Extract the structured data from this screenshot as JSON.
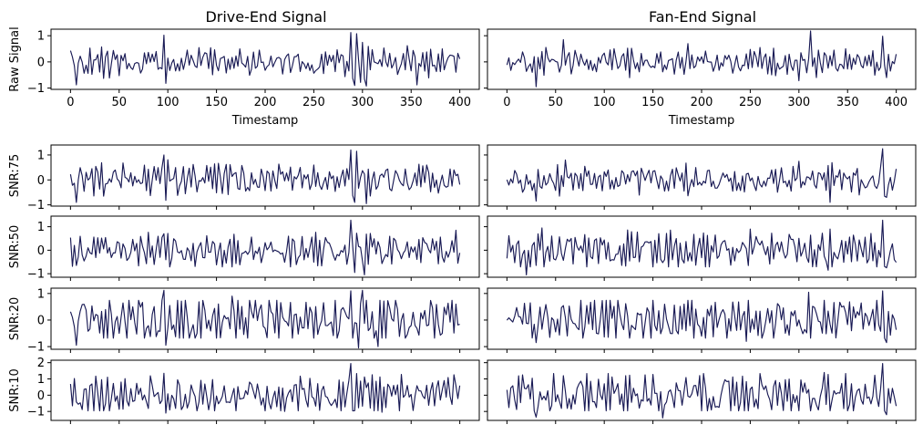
{
  "colors": {
    "line": "#191a55",
    "frame": "#000000",
    "background": "#ffffff"
  },
  "columns": [
    {
      "title": "Drive-End Signal"
    },
    {
      "title": "Fan-End Signal"
    }
  ],
  "chart_data": [
    {
      "type": "line",
      "row": 0,
      "col": 0,
      "ylabel": "Raw Signal",
      "xlabel": "Timestamp",
      "xlim": [
        0,
        400
      ],
      "ylim": [
        -1.05,
        1.25
      ],
      "yticks": [
        -1,
        0,
        1
      ],
      "xticks": [
        0,
        50,
        100,
        150,
        200,
        250,
        300,
        350,
        400
      ],
      "xticklabels": [
        "0",
        "50",
        "100",
        "150",
        "200",
        "250",
        "300",
        "350",
        "400"
      ],
      "seed": 11,
      "amp": 0.22,
      "spikes": [
        [
          95,
          1.02
        ],
        [
          97,
          -0.82
        ],
        [
          288,
          1.12
        ],
        [
          291,
          -0.9
        ],
        [
          294,
          1.08
        ],
        [
          297,
          -0.78
        ],
        [
          303,
          -0.92
        ],
        [
          345,
          0.62
        ],
        [
          356,
          -0.88
        ],
        [
          6,
          -0.88
        ]
      ]
    },
    {
      "type": "line",
      "row": 0,
      "col": 1,
      "ylabel": "",
      "xlabel": "Timestamp",
      "xlim": [
        0,
        400
      ],
      "ylim": [
        -1.05,
        1.25
      ],
      "yticks": [
        -1,
        0,
        1
      ],
      "xticks": [
        0,
        50,
        100,
        150,
        200,
        250,
        300,
        350,
        400
      ],
      "xticklabels": [
        "0",
        "50",
        "100",
        "150",
        "200",
        "250",
        "300",
        "350",
        "400"
      ],
      "seed": 23,
      "amp": 0.2,
      "spikes": [
        [
          30,
          -0.95
        ],
        [
          57,
          0.85
        ],
        [
          186,
          0.7
        ],
        [
          300,
          -0.72
        ],
        [
          311,
          1.18
        ],
        [
          318,
          -0.6
        ],
        [
          385,
          0.98
        ],
        [
          390,
          -0.6
        ],
        [
          260,
          0.55
        ]
      ]
    },
    {
      "type": "line",
      "row": 1,
      "col": 0,
      "ylabel": "SNR:75",
      "xlabel": "",
      "xlim": [
        0,
        400
      ],
      "ylim": [
        -1.05,
        1.4
      ],
      "yticks": [
        -1,
        0,
        1
      ],
      "xticks": [
        0,
        50,
        100,
        150,
        200,
        250,
        300,
        350,
        400
      ],
      "xticklabels": [],
      "seed": 37,
      "amp": 0.26,
      "spikes": [
        [
          95,
          1.0
        ],
        [
          97,
          -0.82
        ],
        [
          288,
          1.2
        ],
        [
          291,
          -0.9
        ],
        [
          294,
          1.15
        ],
        [
          303,
          -0.95
        ],
        [
          5,
          -0.9
        ],
        [
          160,
          0.62
        ]
      ]
    },
    {
      "type": "line",
      "row": 1,
      "col": 1,
      "ylabel": "",
      "xlabel": "",
      "xlim": [
        0,
        400
      ],
      "ylim": [
        -1.05,
        1.4
      ],
      "yticks": [
        -1,
        0,
        1
      ],
      "xticks": [
        0,
        50,
        100,
        150,
        200,
        250,
        300,
        350,
        400
      ],
      "xticklabels": [],
      "seed": 41,
      "amp": 0.24,
      "spikes": [
        [
          30,
          -0.85
        ],
        [
          332,
          -0.9
        ],
        [
          385,
          1.25
        ],
        [
          390,
          -0.7
        ],
        [
          300,
          0.75
        ],
        [
          60,
          0.8
        ]
      ]
    },
    {
      "type": "line",
      "row": 2,
      "col": 0,
      "ylabel": "SNR:50",
      "xlabel": "",
      "xlim": [
        0,
        400
      ],
      "ylim": [
        -1.15,
        1.45
      ],
      "yticks": [
        -1,
        0,
        1
      ],
      "xticks": [
        0,
        50,
        100,
        150,
        200,
        250,
        300,
        350,
        400
      ],
      "xticklabels": [],
      "seed": 53,
      "amp": 0.28,
      "spikes": [
        [
          288,
          1.28
        ],
        [
          291,
          -0.95
        ],
        [
          301,
          -1.05
        ],
        [
          6,
          -0.65
        ],
        [
          95,
          0.7
        ],
        [
          395,
          0.85
        ]
      ]
    },
    {
      "type": "line",
      "row": 2,
      "col": 1,
      "ylabel": "",
      "xlabel": "",
      "xlim": [
        0,
        400
      ],
      "ylim": [
        -1.15,
        1.45
      ],
      "yticks": [
        -1,
        0,
        1
      ],
      "xticks": [
        0,
        50,
        100,
        150,
        200,
        250,
        300,
        350,
        400
      ],
      "xticklabels": [],
      "seed": 67,
      "amp": 0.33,
      "spikes": [
        [
          20,
          -1.05
        ],
        [
          385,
          1.28
        ],
        [
          390,
          -0.75
        ],
        [
          35,
          0.95
        ],
        [
          330,
          -0.85
        ]
      ]
    },
    {
      "type": "line",
      "row": 3,
      "col": 0,
      "ylabel": "SNR:20",
      "xlabel": "",
      "xlim": [
        0,
        400
      ],
      "ylim": [
        -1.1,
        1.2
      ],
      "yticks": [
        -1,
        0,
        1
      ],
      "xticks": [
        0,
        50,
        100,
        150,
        200,
        250,
        300,
        350,
        400
      ],
      "xticklabels": [],
      "seed": 79,
      "amp": 0.38,
      "spikes": [
        [
          95,
          1.12
        ],
        [
          97,
          -0.95
        ],
        [
          288,
          1.1
        ],
        [
          296,
          -1.05
        ],
        [
          300,
          1.12
        ],
        [
          315,
          -1.0
        ],
        [
          5,
          -0.95
        ],
        [
          165,
          0.9
        ]
      ]
    },
    {
      "type": "line",
      "row": 3,
      "col": 1,
      "ylabel": "",
      "xlabel": "",
      "xlim": [
        0,
        400
      ],
      "ylim": [
        -1.1,
        1.2
      ],
      "yticks": [
        -1,
        0,
        1
      ],
      "xticks": [
        0,
        50,
        100,
        150,
        200,
        250,
        300,
        350,
        400
      ],
      "xticklabels": [],
      "seed": 83,
      "amp": 0.34,
      "spikes": [
        [
          385,
          1.1
        ],
        [
          390,
          -0.85
        ],
        [
          310,
          1.05
        ],
        [
          30,
          -0.85
        ],
        [
          245,
          -0.8
        ]
      ]
    },
    {
      "type": "line",
      "row": 4,
      "col": 0,
      "ylabel": "SNR:10",
      "xlabel": "",
      "xlim": [
        0,
        400
      ],
      "ylim": [
        -1.55,
        2.15
      ],
      "yticks": [
        -1,
        0,
        1,
        2
      ],
      "xticks": [
        0,
        50,
        100,
        150,
        200,
        250,
        300,
        350,
        400
      ],
      "xticklabels": [],
      "seed": 97,
      "amp": 0.48,
      "spikes": [
        [
          288,
          1.95
        ],
        [
          291,
          -0.95
        ],
        [
          95,
          1.35
        ],
        [
          97,
          -1.1
        ],
        [
          110,
          0.95
        ],
        [
          220,
          -1.0
        ],
        [
          320,
          -1.05
        ]
      ]
    },
    {
      "type": "line",
      "row": 4,
      "col": 1,
      "ylabel": "",
      "xlabel": "",
      "xlim": [
        0,
        400
      ],
      "ylim": [
        -1.55,
        2.15
      ],
      "yticks": [
        -1,
        0,
        1,
        2
      ],
      "xticks": [
        0,
        50,
        100,
        150,
        200,
        250,
        300,
        350,
        400
      ],
      "xticklabels": [],
      "seed": 101,
      "amp": 0.55,
      "spikes": [
        [
          385,
          1.95
        ],
        [
          390,
          -1.2
        ],
        [
          30,
          -1.35
        ],
        [
          160,
          -1.4
        ],
        [
          325,
          1.4
        ]
      ]
    }
  ]
}
